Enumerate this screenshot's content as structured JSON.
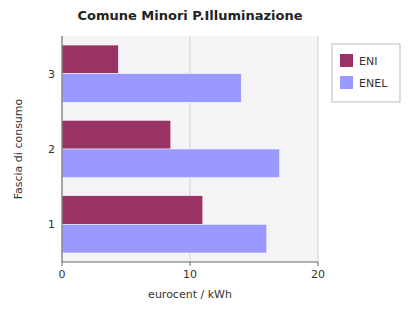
{
  "chart_data": {
    "type": "bar",
    "orientation": "horizontal",
    "title": "Comune Minori P.Illuminazione",
    "xlabel": "eurocent / kWh",
    "ylabel": "Fascia di consumo",
    "categories": [
      "1",
      "2",
      "3"
    ],
    "series": [
      {
        "name": "ENI",
        "color": "#993366",
        "values": [
          11.0,
          8.5,
          4.4
        ]
      },
      {
        "name": "ENEL",
        "color": "#9999FF",
        "values": [
          16.0,
          17.0,
          14.0
        ]
      }
    ],
    "xlim": [
      0,
      20
    ],
    "xticks": [
      0,
      10,
      20
    ],
    "grid": true,
    "legend": "right"
  }
}
